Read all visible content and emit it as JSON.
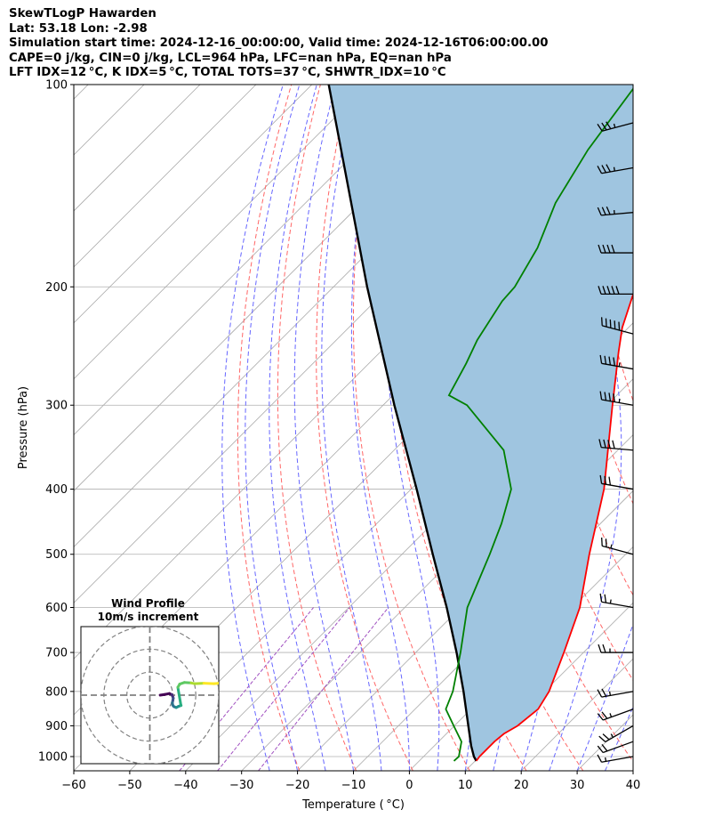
{
  "header": {
    "lines": [
      "SkewTLogP Hawarden",
      "Lat: 53.18   Lon: -2.98",
      "Simulation start time: 2024-12-16_00:00:00, Valid time: 2024-12-16T06:00:00.00",
      "CAPE=0 j/kg, CIN=0 j/kg, LCL=964 hPa, LFC=nan hPa, EQ=nan hPa",
      "LFT IDX=12 °C, K IDX=5 °C, TOTAL TOTS=37 °C, SHWTR_IDX=10 °C"
    ]
  },
  "colors": {
    "temperature": "#ff0000",
    "dewpoint": "#008000",
    "parcel": "#000000",
    "shade": "#9fc5e0",
    "dry_adiabat": "#ff6666",
    "moist_adiabat": "#6666ff",
    "mixing_ratio": "#a050c0",
    "isotherm": "#aaaaaa",
    "grid": "#b0b0b0"
  },
  "chart_data": [
    {
      "type": "line",
      "title": "",
      "xlabel": "Temperature ( °C)",
      "ylabel": "Pressure (hPa)",
      "xlim": [
        -60,
        40
      ],
      "ylim": [
        1050,
        100
      ],
      "yscale": "log",
      "skew": "45",
      "grid": true,
      "x_ticks": [
        "−60",
        "−50",
        "−40",
        "−30",
        "−20",
        "−10",
        "0",
        "10",
        "20",
        "30",
        "40"
      ],
      "x_tick_values": [
        -60,
        -50,
        -40,
        -30,
        -20,
        -10,
        0,
        10,
        20,
        30,
        40
      ],
      "y_ticks": [
        "1000",
        "900",
        "800",
        "700",
        "600",
        "500",
        "400",
        "300",
        "200",
        "100"
      ],
      "y_tick_values": [
        1000,
        900,
        800,
        700,
        600,
        500,
        400,
        300,
        200,
        100
      ],
      "series": [
        {
          "key": "temperature",
          "points": [
            [
              1015,
              10.2
            ],
            [
              1000,
              10.0
            ],
            [
              950,
              10.0
            ],
            [
              925,
              10.3
            ],
            [
              900,
              11.3
            ],
            [
              850,
              12.0
            ],
            [
              800,
              10.8
            ],
            [
              700,
              6.5
            ],
            [
              600,
              1.3
            ],
            [
              500,
              -6.5
            ],
            [
              400,
              -15.5
            ],
            [
              300,
              -29.0
            ],
            [
              250,
              -37.4
            ],
            [
              230,
              -41.1
            ],
            [
              200,
              -46.0
            ],
            [
              175,
              -51.0
            ],
            [
              150,
              -55.5
            ],
            [
              125,
              -59.5
            ],
            [
              100,
              -64.5
            ]
          ]
        },
        {
          "key": "dewpoint",
          "points": [
            [
              1015,
              6.2
            ],
            [
              1000,
              6.3
            ],
            [
              950,
              4.1
            ],
            [
              900,
              -0.1
            ],
            [
              850,
              -4.5
            ],
            [
              800,
              -6.4
            ],
            [
              700,
              -12.0
            ],
            [
              600,
              -18.8
            ],
            [
              500,
              -24.3
            ],
            [
              450,
              -27.7
            ],
            [
              400,
              -32.1
            ],
            [
              350,
              -40.4
            ],
            [
              300,
              -55.0
            ],
            [
              290,
              -60.0
            ],
            [
              260,
              -62.6
            ],
            [
              240,
              -64.8
            ],
            [
              210,
              -67.3
            ],
            [
              200,
              -67.6
            ],
            [
              175,
              -70.5
            ],
            [
              150,
              -75.3
            ],
            [
              125,
              -79.0
            ],
            [
              100,
              -82.0
            ]
          ]
        },
        {
          "key": "parcel",
          "points": [
            [
              1015,
              10.2
            ],
            [
              1000,
              9.0
            ],
            [
              964,
              6.6
            ],
            [
              900,
              2.5
            ],
            [
              800,
              -4.5
            ],
            [
              700,
              -12.7
            ],
            [
              600,
              -22.5
            ],
            [
              500,
              -34.5
            ],
            [
              400,
              -49.0
            ],
            [
              300,
              -68.0
            ],
            [
              200,
              -94.0
            ],
            [
              100,
              -137.0
            ]
          ]
        }
      ],
      "shade_between": [
        "temperature",
        "parcel"
      ],
      "wind_barbs": [
        {
          "p": 1000,
          "speed_kt": 15,
          "dir_deg": 260
        },
        {
          "p": 950,
          "speed_kt": 20,
          "dir_deg": 250
        },
        {
          "p": 900,
          "speed_kt": 25,
          "dir_deg": 240
        },
        {
          "p": 850,
          "speed_kt": 25,
          "dir_deg": 250
        },
        {
          "p": 800,
          "speed_kt": 25,
          "dir_deg": 260
        },
        {
          "p": 700,
          "speed_kt": 25,
          "dir_deg": 270
        },
        {
          "p": 600,
          "speed_kt": 25,
          "dir_deg": 280
        },
        {
          "p": 500,
          "speed_kt": 25,
          "dir_deg": 285
        },
        {
          "p": 400,
          "speed_kt": 30,
          "dir_deg": 280
        },
        {
          "p": 350,
          "speed_kt": 40,
          "dir_deg": 275
        },
        {
          "p": 300,
          "speed_kt": 45,
          "dir_deg": 280
        },
        {
          "p": 265,
          "speed_kt": 45,
          "dir_deg": 280
        },
        {
          "p": 235,
          "speed_kt": 50,
          "dir_deg": 285
        },
        {
          "p": 205,
          "speed_kt": 50,
          "dir_deg": 270
        },
        {
          "p": 178,
          "speed_kt": 40,
          "dir_deg": 270
        },
        {
          "p": 155,
          "speed_kt": 35,
          "dir_deg": 265
        },
        {
          "p": 133,
          "speed_kt": 35,
          "dir_deg": 260
        },
        {
          "p": 114,
          "speed_kt": 35,
          "dir_deg": 255
        }
      ]
    },
    {
      "type": "line",
      "title": "Wind Profile",
      "subtitle": "10m/s increment",
      "rings_ms": [
        10,
        20,
        30
      ],
      "lim_ms": [
        -30,
        30
      ],
      "hodograph": [
        [
          4.5,
          0.0
        ],
        [
          6.5,
          0.3
        ],
        [
          8.5,
          0.7
        ],
        [
          9.6,
          0.2
        ],
        [
          10.0,
          -0.7
        ],
        [
          10.2,
          -1.3
        ],
        [
          10.0,
          -2.4
        ],
        [
          9.8,
          -3.3
        ],
        [
          10.0,
          -4.4
        ],
        [
          10.5,
          -5.0
        ],
        [
          11.5,
          -5.4
        ],
        [
          12.4,
          -4.9
        ],
        [
          13.6,
          -4.5
        ],
        [
          13.5,
          -4.2
        ],
        [
          12.2,
          3.4
        ],
        [
          13.0,
          4.8
        ],
        [
          15.0,
          5.5
        ],
        [
          18.0,
          5.3
        ],
        [
          19.5,
          5.0
        ],
        [
          23.5,
          5.2
        ],
        [
          28.0,
          5.0
        ],
        [
          30.0,
          5.2
        ]
      ]
    }
  ]
}
